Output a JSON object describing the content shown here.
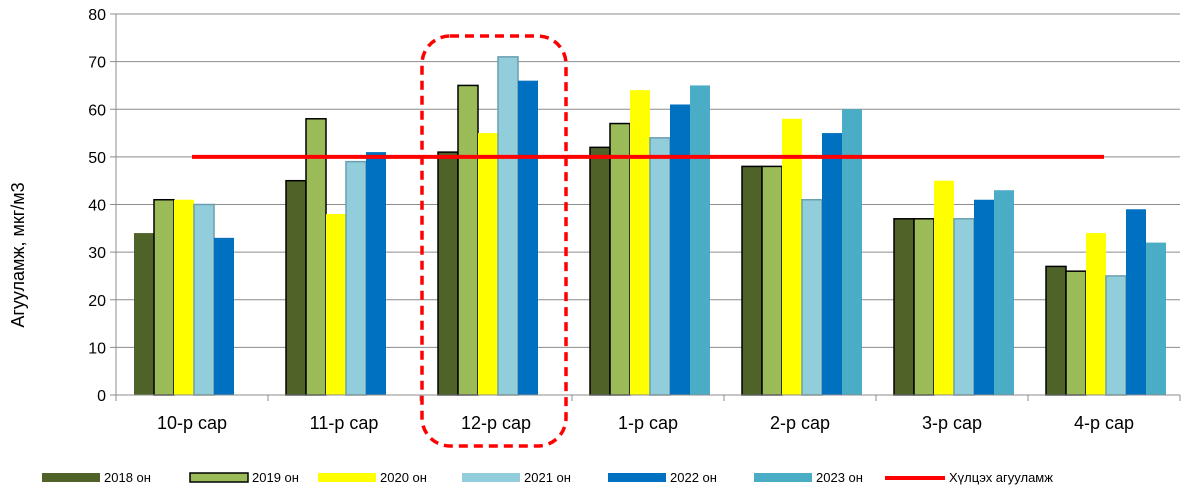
{
  "chart_data": {
    "type": "bar",
    "categories": [
      "10-р сар",
      "11-р сар",
      "12-р сар",
      "1-р сар",
      "2-р сар",
      "3-р сар",
      "4-р сар"
    ],
    "series": [
      {
        "name": "2018 он",
        "color": "#4f6228",
        "values": [
          34,
          45,
          51,
          52,
          48,
          37,
          27
        ]
      },
      {
        "name": "2019 он",
        "color": "#9bbb59",
        "values": [
          41,
          58,
          65,
          57,
          48,
          37,
          26
        ]
      },
      {
        "name": "2020 он",
        "color": "#ffff00",
        "values": [
          41,
          38,
          55,
          64,
          58,
          45,
          34
        ]
      },
      {
        "name": "2021 он",
        "color": "#92cddc",
        "values": [
          40,
          49,
          71,
          54,
          41,
          37,
          25
        ]
      },
      {
        "name": "2022 он",
        "color": "#0070c0",
        "values": [
          33,
          51,
          66,
          61,
          55,
          41,
          39
        ]
      },
      {
        "name": "2023 он",
        "color": "#4bacc6",
        "values": [
          null,
          null,
          null,
          65,
          60,
          43,
          32
        ]
      }
    ],
    "threshold": {
      "name": "Хүлцэх агууламж",
      "value": 50,
      "color": "#ff0000"
    },
    "highlight_category": "12-р сар",
    "highlight_color": "#ff0000",
    "ylabel": "Агууламж, мкг/м3",
    "xlabel": "",
    "ylim": [
      0,
      80
    ],
    "yticks": [
      0,
      10,
      20,
      30,
      40,
      50,
      60,
      70,
      80
    ],
    "grid": true,
    "legend_position": "bottom"
  }
}
